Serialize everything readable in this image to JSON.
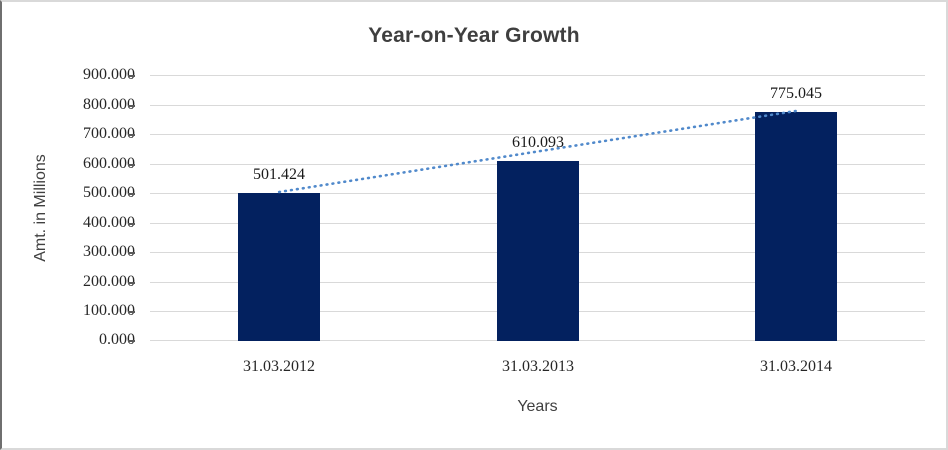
{
  "chart_data": {
    "type": "bar",
    "title": "Year-on-Year Growth",
    "categories": [
      "31.03.2012",
      "31.03.2013",
      "31.03.2014"
    ],
    "values": [
      501.424,
      610.093,
      775.045
    ],
    "data_labels": [
      "501.424",
      "610.093",
      "775.045"
    ],
    "xlabel": "Years",
    "ylabel": "Amt. in Millions",
    "ylim": [
      0,
      900
    ],
    "ytick_step": 100,
    "ytick_labels": [
      "0.000",
      "100.000",
      "200.000",
      "300.000",
      "400.000",
      "500.000",
      "600.000",
      "700.000",
      "800.000",
      "900.000"
    ],
    "grid": true,
    "legend": "none",
    "bar_color": "#03215F",
    "gridline_color": "#D9D9D9",
    "tick_color": "#595959",
    "trendline": {
      "type": "linear",
      "style": "dotted",
      "color": "#5089CB"
    }
  }
}
